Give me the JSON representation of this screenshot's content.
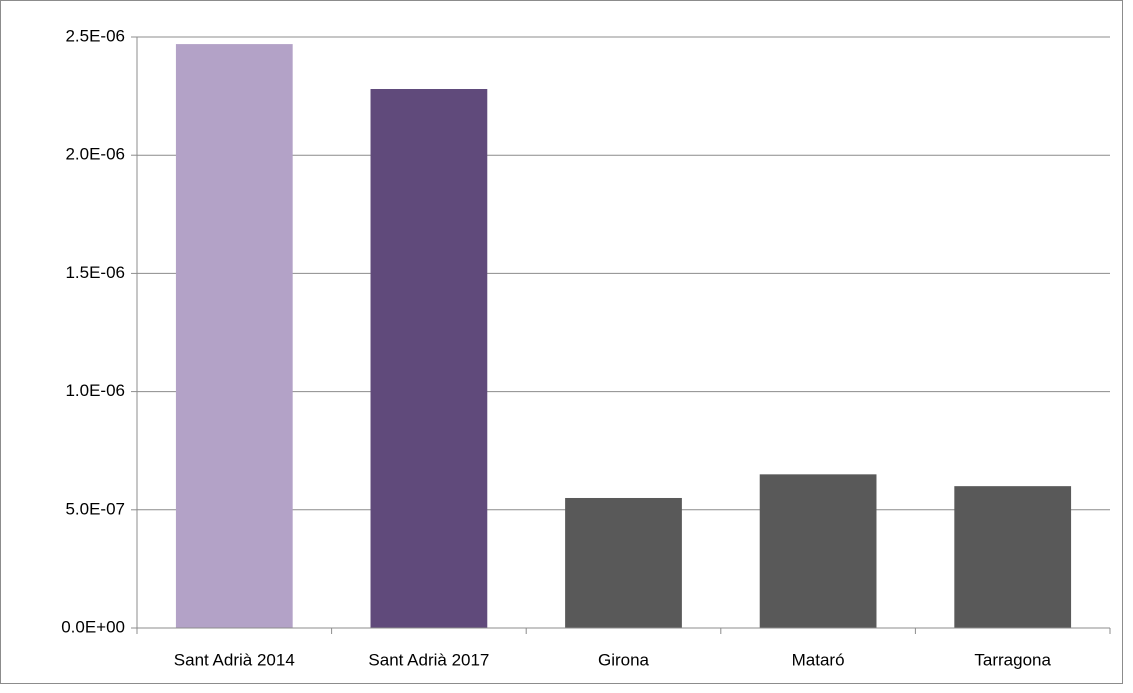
{
  "chart_data": {
    "type": "bar",
    "categories": [
      "Sant Adrià 2014",
      "Sant Adrià 2017",
      "Girona",
      "Mataró",
      "Tarragona"
    ],
    "values": [
      2.47e-06,
      2.28e-06,
      5.5e-07,
      6.5e-07,
      6e-07
    ],
    "colors": [
      "#b3a2c7",
      "#604a7b",
      "#595959",
      "#595959",
      "#595959"
    ],
    "ylim": [
      0,
      2.5e-06
    ],
    "yticks": [
      {
        "value": 0,
        "label": "0.0E+00"
      },
      {
        "value": 5e-07,
        "label": "5.0E-07"
      },
      {
        "value": 1e-06,
        "label": "1.0E-06"
      },
      {
        "value": 1.5e-06,
        "label": "1.5E-06"
      },
      {
        "value": 2e-06,
        "label": "2.0E-06"
      },
      {
        "value": 2.5e-06,
        "label": "2.5E-06"
      }
    ],
    "grid": true
  }
}
